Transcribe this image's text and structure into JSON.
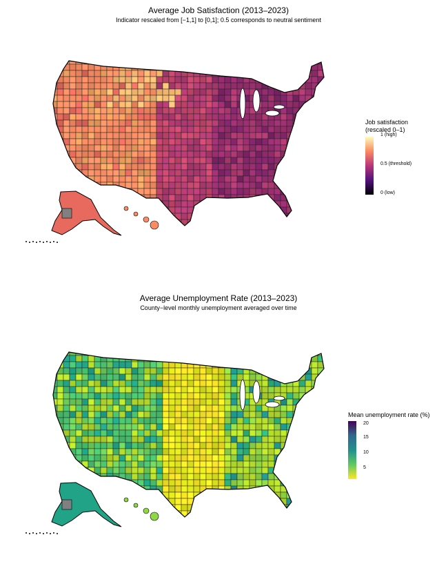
{
  "maps": [
    {
      "title": "Average Job Satisfaction (2013–2023)",
      "subtitle": "Indicator rescaled from [−1,1] to [0,1]; 0.5 corresponds to neutral sentiment",
      "legend": {
        "title": "Job satisfaction\n(rescaled 0–1)",
        "ticks": [
          "1 (high)",
          "0.5 (threshold)",
          "0 (low)"
        ],
        "tick_values": [
          1,
          0.5,
          0
        ],
        "colors": [
          "#fcfdbf",
          "#fc8961",
          "#b73779",
          "#51127c",
          "#000004"
        ]
      },
      "palette": [
        "#f98c63",
        "#e86a5e",
        "#d4566b",
        "#c8476e",
        "#b03a72",
        "#9a2e70",
        "#7e2368",
        "#5c1a5e",
        "#f2a35f",
        "#fbbd74"
      ],
      "missing_color": "#808080"
    },
    {
      "title": "Average Unemployment Rate (2013–2023)",
      "subtitle": "County−level monthly unemployment averaged over time",
      "legend": {
        "title": "Mean unemployment rate (%)",
        "ticks": [
          "20",
          "15",
          "10",
          "5"
        ],
        "tick_values": [
          20,
          15,
          10,
          5
        ],
        "colors": [
          "#440154",
          "#31688e",
          "#21908d",
          "#5ec962",
          "#fde725"
        ]
      },
      "palette": [
        "#8fd744",
        "#b5de2b",
        "#dde318",
        "#6ccd5a",
        "#4ac16d",
        "#2fb47c",
        "#20a386",
        "#1f948c",
        "#fde725",
        "#c2df23"
      ],
      "missing_color": "#808080"
    }
  ]
}
